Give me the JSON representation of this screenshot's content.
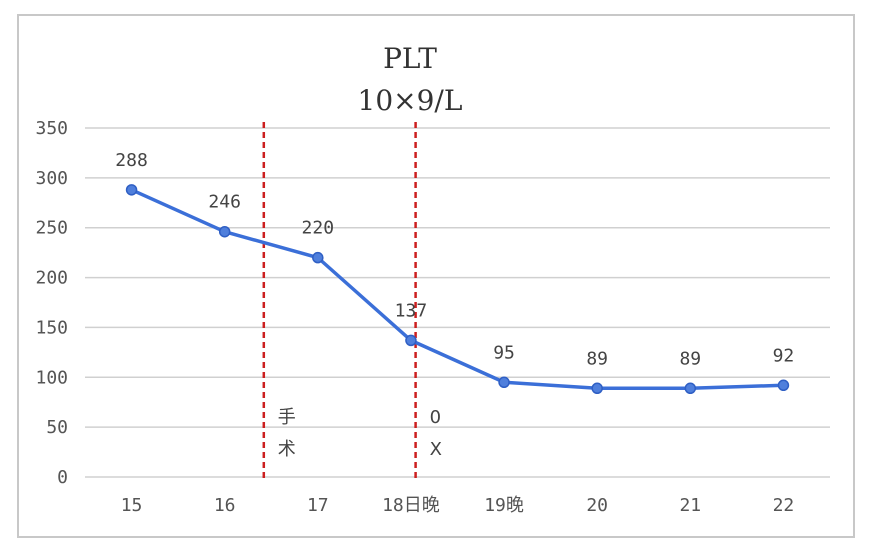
{
  "chart_data": {
    "type": "line",
    "title": "PLT",
    "subtitle": "10×9/L",
    "categories": [
      "15",
      "16",
      "17",
      "18日晚",
      "19晚",
      "20",
      "21",
      "22"
    ],
    "series": [
      {
        "values": [
          288,
          246,
          220,
          137,
          95,
          89,
          89,
          92
        ]
      }
    ],
    "data_labels": [
      "288",
      "246",
      "220",
      "137",
      "95",
      "89",
      "89",
      "92"
    ],
    "y_ticks": [
      "0",
      "50",
      "100",
      "150",
      "200",
      "250",
      "300",
      "350"
    ],
    "ylim": [
      0,
      350
    ],
    "grid": true,
    "legend": "none",
    "colors": {
      "line": "#3b6fd8",
      "marker": "#4f7fdc",
      "vline": "#cc1f1f",
      "grid": "#d0d0d0"
    },
    "annotations": [
      {
        "text_top": "手",
        "text_bottom": "术",
        "x_between": [
          "16",
          "17"
        ],
        "style": "dashed-red-vertical"
      },
      {
        "text_top": "0",
        "text_bottom": "X",
        "x_between": [
          "18日晚",
          "19晚"
        ],
        "style": "dashed-red-vertical"
      }
    ]
  }
}
